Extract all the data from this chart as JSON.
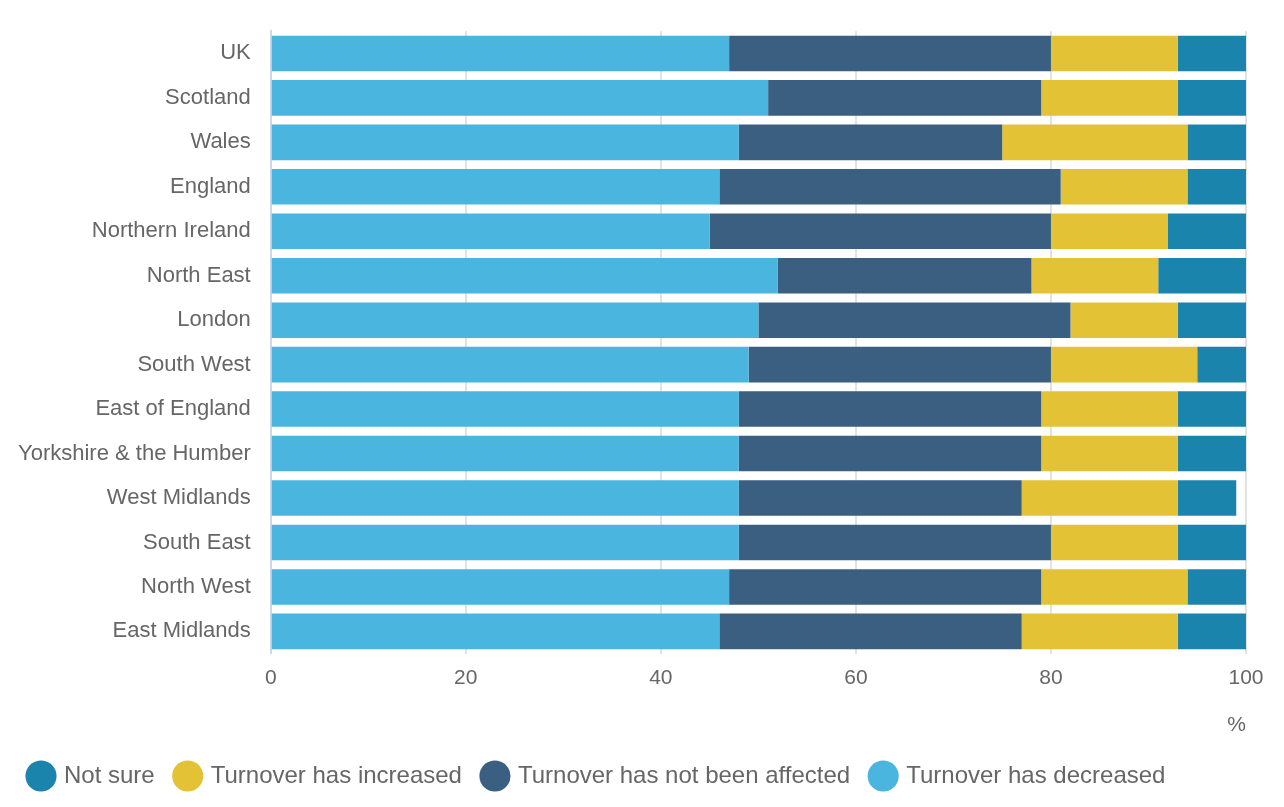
{
  "chart_data": {
    "type": "bar",
    "orientation": "horizontal",
    "stacked": true,
    "categories": [
      "UK",
      "Scotland",
      "Wales",
      "England",
      "Northern Ireland",
      "North East",
      "London",
      "South West",
      "East of England",
      "Yorkshire & the Humber",
      "West Midlands",
      "South East",
      "North West",
      "East Midlands"
    ],
    "series": [
      {
        "name": "Turnover has decreased",
        "color": "#4ab5de",
        "values": [
          47,
          51,
          48,
          46,
          45,
          52,
          50,
          49,
          48,
          48,
          48,
          48,
          47,
          46
        ]
      },
      {
        "name": "Turnover has not been affected",
        "color": "#3a5f80",
        "values": [
          33,
          28,
          27,
          35,
          35,
          26,
          32,
          31,
          31,
          31,
          29,
          32,
          32,
          31
        ]
      },
      {
        "name": "Turnover has increased",
        "color": "#e3c236",
        "values": [
          13,
          14,
          19,
          13,
          12,
          13,
          11,
          15,
          14,
          14,
          16,
          13,
          15,
          16
        ]
      },
      {
        "name": "Not sure",
        "color": "#1a84ad",
        "values": [
          7,
          7,
          6,
          6,
          8,
          9,
          7,
          5,
          7,
          7,
          6,
          7,
          6,
          7
        ]
      }
    ],
    "xlim": [
      0,
      100
    ],
    "xticks": [
      0,
      20,
      40,
      60,
      80,
      100
    ],
    "xlabel": "%",
    "grid": "x",
    "legend": "bottom"
  }
}
